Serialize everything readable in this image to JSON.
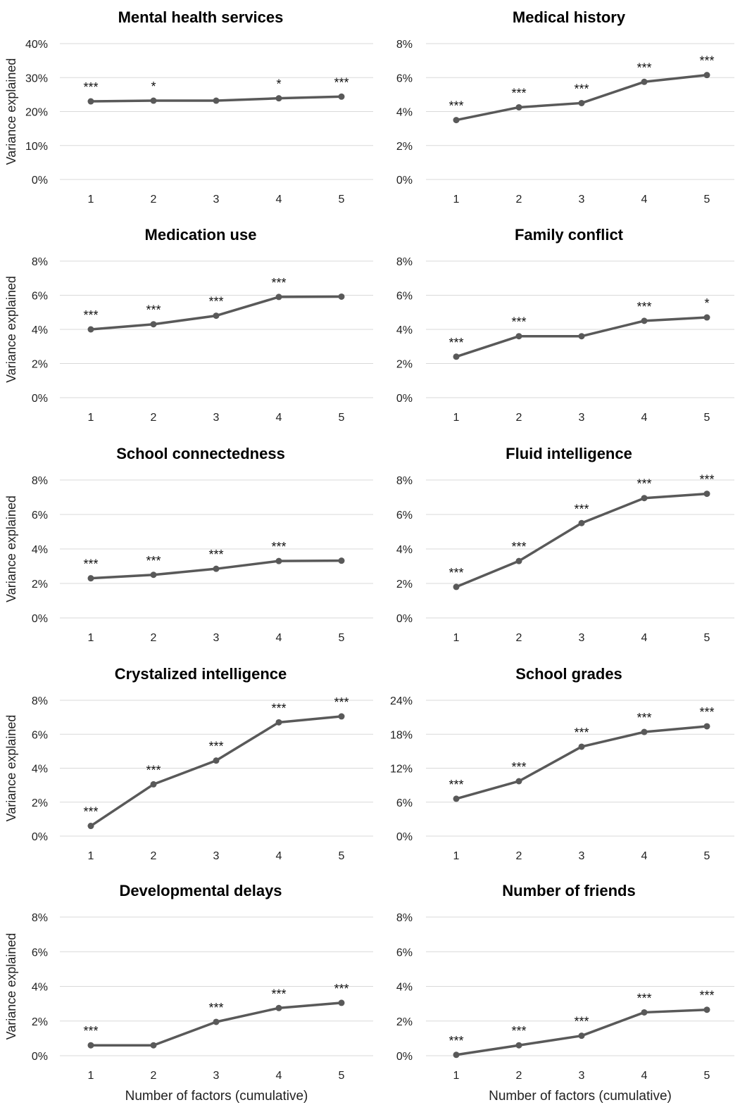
{
  "chart_data": [
    {
      "type": "line",
      "title": "Mental health services",
      "ylabel": "Variance explained",
      "xlabel": "",
      "x": [
        1,
        2,
        3,
        4,
        5
      ],
      "values": [
        23.0,
        23.2,
        23.2,
        23.9,
        24.4
      ],
      "ylim": [
        0,
        40
      ],
      "yticks": [
        "0%",
        "10%",
        "20%",
        "30%",
        "40%"
      ],
      "annotations": [
        "***",
        "*",
        "",
        "*",
        "***"
      ]
    },
    {
      "type": "line",
      "title": "Medical history",
      "ylabel": "",
      "xlabel": "",
      "x": [
        1,
        2,
        3,
        4,
        5
      ],
      "values": [
        3.5,
        4.25,
        4.5,
        5.75,
        6.15
      ],
      "ylim": [
        0,
        8
      ],
      "yticks": [
        "0%",
        "2%",
        "4%",
        "6%",
        "8%"
      ],
      "annotations": [
        "***",
        "***",
        "***",
        "***",
        "***"
      ]
    },
    {
      "type": "line",
      "title": "Medication use",
      "ylabel": "Variance explained",
      "xlabel": "",
      "x": [
        1,
        2,
        3,
        4,
        5
      ],
      "values": [
        4.0,
        4.3,
        4.8,
        5.9,
        5.92
      ],
      "ylim": [
        0,
        8
      ],
      "yticks": [
        "0%",
        "2%",
        "4%",
        "6%",
        "8%"
      ],
      "annotations": [
        "***",
        "***",
        "***",
        "***",
        ""
      ]
    },
    {
      "type": "line",
      "title": "Family conflict",
      "ylabel": "",
      "xlabel": "",
      "x": [
        1,
        2,
        3,
        4,
        5
      ],
      "values": [
        2.4,
        3.6,
        3.6,
        4.5,
        4.7
      ],
      "ylim": [
        0,
        8
      ],
      "yticks": [
        "0%",
        "2%",
        "4%",
        "6%",
        "8%"
      ],
      "annotations": [
        "***",
        "***",
        "",
        "***",
        "*"
      ]
    },
    {
      "type": "line",
      "title": "School connectedness",
      "ylabel": "Variance explained",
      "xlabel": "",
      "x": [
        1,
        2,
        3,
        4,
        5
      ],
      "values": [
        2.3,
        2.5,
        2.85,
        3.3,
        3.32
      ],
      "ylim": [
        0,
        8
      ],
      "yticks": [
        "0%",
        "2%",
        "4%",
        "6%",
        "8%"
      ],
      "annotations": [
        "***",
        "***",
        "***",
        "***",
        ""
      ]
    },
    {
      "type": "line",
      "title": "Fluid intelligence",
      "ylabel": "",
      "xlabel": "",
      "x": [
        1,
        2,
        3,
        4,
        5
      ],
      "values": [
        1.8,
        3.3,
        5.5,
        6.95,
        7.2
      ],
      "ylim": [
        0,
        8
      ],
      "yticks": [
        "0%",
        "2%",
        "4%",
        "6%",
        "8%"
      ],
      "annotations": [
        "***",
        "***",
        "***",
        "***",
        "***"
      ]
    },
    {
      "type": "line",
      "title": "Crystalized intelligence",
      "ylabel": "Variance explained",
      "xlabel": "",
      "x": [
        1,
        2,
        3,
        4,
        5
      ],
      "values": [
        0.6,
        3.05,
        4.45,
        6.7,
        7.05
      ],
      "ylim": [
        0,
        8
      ],
      "yticks": [
        "0%",
        "2%",
        "4%",
        "6%",
        "8%"
      ],
      "annotations": [
        "***",
        "***",
        "***",
        "***",
        "***"
      ]
    },
    {
      "type": "line",
      "title": "School grades",
      "ylabel": "",
      "xlabel": "",
      "x": [
        1,
        2,
        3,
        4,
        5
      ],
      "values": [
        6.6,
        9.7,
        15.8,
        18.4,
        19.4
      ],
      "ylim": [
        0,
        24
      ],
      "yticks": [
        "0%",
        "6%",
        "12%",
        "18%",
        "24%"
      ],
      "annotations": [
        "***",
        "***",
        "***",
        "***",
        "***"
      ]
    },
    {
      "type": "line",
      "title": "Developmental delays",
      "ylabel": "Variance explained",
      "xlabel": "Number of factors (cumulative)",
      "x": [
        1,
        2,
        3,
        4,
        5
      ],
      "values": [
        0.6,
        0.6,
        1.95,
        2.75,
        3.05
      ],
      "ylim": [
        0,
        8
      ],
      "yticks": [
        "0%",
        "2%",
        "4%",
        "6%",
        "8%"
      ],
      "annotations": [
        "***",
        "",
        "***",
        "***",
        "***"
      ]
    },
    {
      "type": "line",
      "title": "Number of friends",
      "ylabel": "",
      "xlabel": "Number of factors  (cumulative)",
      "x": [
        1,
        2,
        3,
        4,
        5
      ],
      "values": [
        0.05,
        0.6,
        1.15,
        2.5,
        2.65
      ],
      "ylim": [
        0,
        8
      ],
      "yticks": [
        "0%",
        "2%",
        "4%",
        "6%",
        "8%"
      ],
      "annotations": [
        "***",
        "***",
        "***",
        "***",
        "***"
      ]
    }
  ],
  "colors": {
    "line": "#595959",
    "grid": "#d9d9d9",
    "text": "#000000"
  }
}
